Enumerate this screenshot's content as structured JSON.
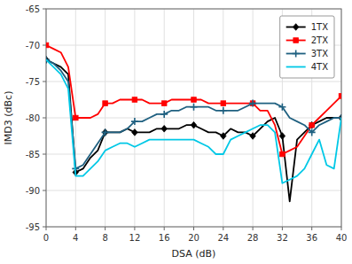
{
  "chart_data": {
    "type": "line",
    "xlabel": "DSA (dB)",
    "ylabel": "IMD3 (dBc)",
    "x": [
      0,
      1,
      2,
      3,
      4,
      5,
      6,
      7,
      8,
      9,
      10,
      11,
      12,
      13,
      14,
      15,
      16,
      17,
      18,
      19,
      20,
      21,
      22,
      23,
      24,
      25,
      26,
      27,
      28,
      29,
      30,
      31,
      32,
      33,
      34,
      35,
      36,
      37,
      38,
      39,
      40
    ],
    "series": [
      {
        "name": "1TX",
        "color": "#000000",
        "marker": "diamond",
        "values": [
          -72,
          -72.5,
          -73,
          -74,
          -87.5,
          -87,
          -85.5,
          -84.5,
          -82,
          -82,
          -82,
          -81.5,
          -82,
          -82,
          -82,
          -81.5,
          -81.5,
          -81.5,
          -81.5,
          -81,
          -81,
          -81.5,
          -82,
          -82,
          -82.5,
          -81.5,
          -82,
          -82,
          -82.5,
          -81.5,
          -80.5,
          -80,
          -82.5,
          -91.5,
          -83,
          -82,
          -81,
          -80.5,
          -80,
          -80,
          -80
        ]
      },
      {
        "name": "2TX",
        "color": "#ff0000",
        "marker": "square",
        "values": [
          -70,
          -70.5,
          -71,
          -73,
          -80,
          -80,
          -80,
          -79.5,
          -78,
          -78,
          -77.5,
          -77.5,
          -77.5,
          -77.5,
          -78,
          -78,
          -78,
          -77.5,
          -77.5,
          -77.5,
          -77.5,
          -77.5,
          -78,
          -78,
          -78,
          -78,
          -78,
          -78,
          -78,
          -79,
          -79,
          -81,
          -85,
          -84.5,
          -84,
          -82.5,
          -81,
          -80,
          -79,
          -78,
          -77
        ]
      },
      {
        "name": "3TX",
        "color": "#1f6080",
        "marker": "plus",
        "values": [
          -72,
          -72.5,
          -73.5,
          -75,
          -87,
          -86.5,
          -85,
          -83.5,
          -82,
          -82,
          -82,
          -81.5,
          -80.5,
          -80.5,
          -80,
          -79.5,
          -79.5,
          -79,
          -79,
          -78.5,
          -78.5,
          -78.5,
          -78.5,
          -79,
          -79,
          -79,
          -79,
          -78.5,
          -78,
          -78,
          -78,
          -78,
          -78.5,
          -80,
          -80.5,
          -81,
          -82,
          -81,
          -80.5,
          -80,
          -80
        ]
      },
      {
        "name": "4TX",
        "color": "#00c8e6",
        "marker": "none",
        "values": [
          -72,
          -73,
          -74,
          -76,
          -88,
          -88,
          -87,
          -86,
          -84.5,
          -84,
          -83.5,
          -83.5,
          -84,
          -83.5,
          -83,
          -83,
          -83,
          -83,
          -83,
          -83,
          -83,
          -83.5,
          -84,
          -85,
          -85,
          -83,
          -82.5,
          -82,
          -81.5,
          -81,
          -81,
          -82,
          -89,
          -88.5,
          -88,
          -87,
          -85,
          -83,
          -86.5,
          -87,
          -80
        ]
      }
    ],
    "xlim": [
      0,
      40
    ],
    "ylim": [
      -95,
      -65
    ],
    "xticks": [
      0,
      4,
      8,
      12,
      16,
      20,
      24,
      28,
      32,
      36,
      40
    ],
    "yticks": [
      -95,
      -90,
      -85,
      -80,
      -75,
      -70,
      -65
    ],
    "grid": true,
    "legend": "upper right"
  }
}
